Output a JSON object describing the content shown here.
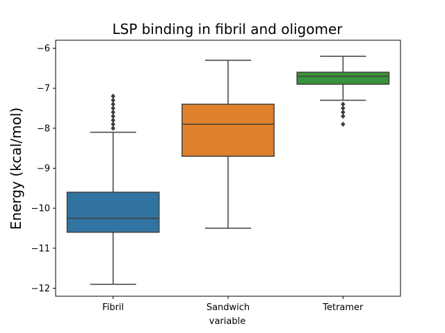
{
  "chart_data": {
    "type": "box",
    "title": "LSP binding in fibril and oligomer",
    "xlabel": "variable",
    "ylabel": "Energy (kcal/mol)",
    "ylim": [
      -12.2,
      -5.8
    ],
    "yticks": [
      -12,
      -11,
      -10,
      -9,
      -8,
      -7,
      -6
    ],
    "ytick_labels": [
      "−12",
      "−11",
      "−10",
      "−9",
      "−8",
      "−7",
      "−6"
    ],
    "grid": false,
    "categories": [
      "Fibril",
      "Sandwich",
      "Tetramer"
    ],
    "series": [
      {
        "category": "Fibril",
        "color": "#3274a1",
        "min": -11.9,
        "q1": -10.6,
        "median": -10.25,
        "q3": -9.6,
        "max": -8.1,
        "outliers": [
          -8.0,
          -7.9,
          -7.8,
          -7.7,
          -7.6,
          -7.5,
          -7.4,
          -7.3,
          -7.2
        ]
      },
      {
        "category": "Sandwich",
        "color": "#e1812c",
        "min": -10.5,
        "q1": -8.7,
        "median": -7.9,
        "q3": -7.4,
        "max": -6.3,
        "outliers": []
      },
      {
        "category": "Tetramer",
        "color": "#3a923a",
        "min": -7.3,
        "q1": -6.9,
        "median": -6.7,
        "q3": -6.6,
        "max": -6.2,
        "outliers": [
          -7.4,
          -7.5,
          -7.6,
          -7.7,
          -7.9
        ]
      }
    ]
  }
}
